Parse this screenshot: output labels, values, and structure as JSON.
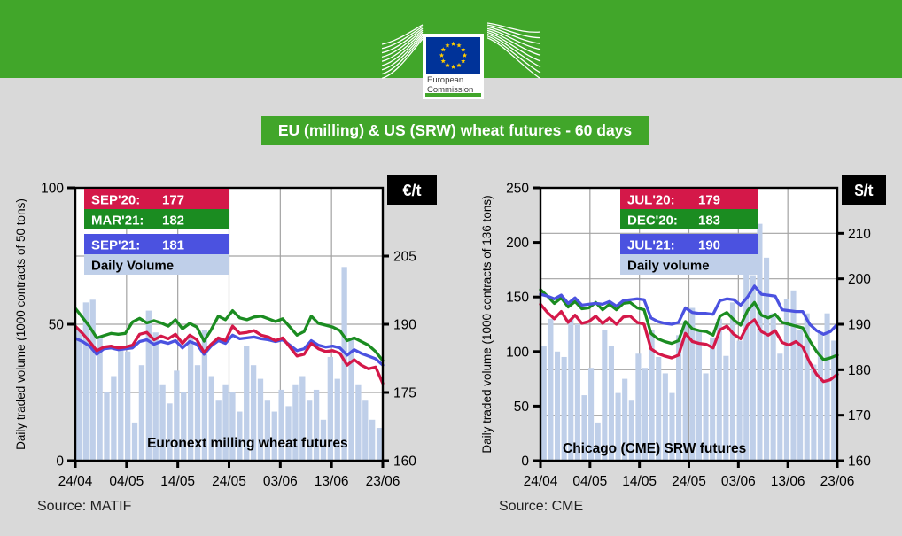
{
  "title": "EU (milling) & US (SRW) wheat futures - 60 days",
  "header": {
    "logo": {
      "line1": "European",
      "line2": "Commission"
    }
  },
  "colors": {
    "band_green": "#41a62a",
    "page_bg": "#d9d9d9",
    "grid": "#a3a3a3",
    "red": "#d41849",
    "green": "#1b8c21",
    "blue": "#4b52e0",
    "volume": "#bfcfe9",
    "unit_box_bg": "#000000",
    "unit_box_fg": "#ffffff"
  },
  "chart_data": [
    {
      "type": "line+bar",
      "title": "Euronext milling wheat futures",
      "source": "Source: MATIF",
      "x_tick_labels": [
        "24/04",
        "04/05",
        "14/05",
        "24/05",
        "03/06",
        "13/06",
        "23/06"
      ],
      "y_left": {
        "label": "Daily traded volume (1000 contracts of 50 tons)",
        "min": 0,
        "max": 100,
        "ticks": [
          0,
          50,
          100
        ]
      },
      "y_right": {
        "unit": "€/t",
        "min": 160,
        "max": 220,
        "ticks": [
          160,
          175,
          190,
          205
        ]
      },
      "legend": [
        {
          "text": "SEP'20:",
          "value": "177",
          "bg": "#d41849",
          "fg": "#ffffff"
        },
        {
          "text": "MAR'21:",
          "value": "182",
          "bg": "#1b8c21",
          "fg": "#ffffff"
        },
        {
          "text": "SEP'21:",
          "value": "181",
          "bg": "#4b52e0",
          "fg": "#ffffff"
        },
        {
          "text": "Daily Volume",
          "value": "",
          "bg": "#bfcfe9",
          "fg": "#000000"
        }
      ],
      "series": [
        {
          "name": "MAR'21",
          "last": 182,
          "color": "#1b8c21",
          "values": [
            193.5,
            191.5,
            189.5,
            187.0,
            187.5,
            188.0,
            187.8,
            188.0,
            190.5,
            191.3,
            190.3,
            190.8,
            190.3,
            189.6,
            191.0,
            189.0,
            190.2,
            189.4,
            186.3,
            188.8,
            191.8,
            191.0,
            193.0,
            191.4,
            191.0,
            191.6,
            191.8,
            191.2,
            190.6,
            191.2,
            189.4,
            187.6,
            188.4,
            191.8,
            190.2,
            189.8,
            189.4,
            188.6,
            186.4,
            187.0,
            186.2,
            185.4,
            184.0,
            182.0
          ]
        },
        {
          "name": "SEP'21",
          "last": 181,
          "color": "#4b52e0",
          "values": [
            186.9,
            186.2,
            185.2,
            183.4,
            184.6,
            184.8,
            184.4,
            184.6,
            184.8,
            186.2,
            186.6,
            185.6,
            186.2,
            185.8,
            186.4,
            184.8,
            186.2,
            185.6,
            183.4,
            185.2,
            186.4,
            185.8,
            187.6,
            186.8,
            187.0,
            187.2,
            186.8,
            186.6,
            186.2,
            186.6,
            185.4,
            184.2,
            184.6,
            186.4,
            185.4,
            185.0,
            185.2,
            184.8,
            183.2,
            184.4,
            183.6,
            183.0,
            182.4,
            181.0
          ]
        },
        {
          "name": "SEP'20",
          "last": 177,
          "color": "#d41849",
          "values": [
            189.6,
            188.0,
            186.2,
            184.2,
            185.0,
            185.2,
            184.8,
            185.0,
            185.4,
            187.8,
            188.2,
            186.6,
            187.4,
            186.8,
            187.8,
            185.8,
            187.6,
            186.6,
            183.8,
            185.6,
            187.0,
            186.4,
            189.6,
            188.0,
            188.2,
            188.6,
            187.6,
            187.2,
            186.4,
            187.0,
            185.0,
            183.0,
            183.4,
            185.8,
            184.6,
            184.0,
            184.2,
            183.6,
            181.0,
            182.2,
            181.0,
            180.2,
            180.6,
            177.0
          ]
        }
      ],
      "volume": {
        "name": "Daily Volume",
        "color": "#bfcfe9",
        "values": [
          48,
          58,
          59,
          45,
          25,
          31,
          42,
          40,
          14,
          35,
          55,
          47,
          28,
          21,
          33,
          25,
          45,
          35,
          48,
          31,
          22,
          28,
          25,
          18,
          42,
          35,
          30,
          22,
          18,
          26,
          20,
          28,
          31,
          22,
          26,
          15,
          38,
          30,
          71,
          45,
          28,
          22,
          15,
          12
        ]
      }
    },
    {
      "type": "line+bar",
      "title": "Chicago (CME) SRW futures",
      "source": "Source: CME",
      "x_tick_labels": [
        "24/04",
        "04/05",
        "14/05",
        "24/05",
        "03/06",
        "13/06",
        "23/06"
      ],
      "y_left": {
        "label": "Daily traded volume (1000 contracts of 136 tons)",
        "min": 0,
        "max": 250,
        "ticks": [
          0,
          50,
          100,
          150,
          200,
          250
        ]
      },
      "y_right": {
        "unit": "$/t",
        "min": 160,
        "max": 220,
        "ticks": [
          160,
          170,
          180,
          190,
          200,
          210
        ]
      },
      "legend": [
        {
          "text": "JUL'20:",
          "value": "179",
          "bg": "#d41849",
          "fg": "#ffffff"
        },
        {
          "text": "DEC'20:",
          "value": "183",
          "bg": "#1b8c21",
          "fg": "#ffffff"
        },
        {
          "text": "JUL'21:",
          "value": "190",
          "bg": "#4b52e0",
          "fg": "#ffffff"
        },
        {
          "text": "Daily volume",
          "value": "",
          "bg": "#bfcfe9",
          "fg": "#000000"
        }
      ],
      "series": [
        {
          "name": "JUL'20",
          "last": 179,
          "color": "#d41849",
          "values": [
            194.4,
            192.6,
            191.2,
            192.8,
            190.4,
            192.0,
            190.2,
            190.6,
            191.8,
            190.2,
            191.4,
            190.0,
            191.6,
            191.8,
            190.4,
            190.0,
            184.6,
            183.6,
            183.0,
            182.6,
            183.2,
            188.0,
            186.2,
            185.8,
            185.6,
            184.8,
            188.8,
            189.6,
            187.8,
            186.8,
            189.8,
            191.0,
            188.4,
            187.6,
            188.6,
            186.0,
            185.4,
            186.2,
            185.0,
            181.6,
            179.0,
            177.4,
            177.8,
            179.0
          ]
        },
        {
          "name": "DEC'20",
          "last": 183,
          "color": "#1b8c21",
          "values": [
            197.6,
            196.2,
            194.6,
            195.8,
            193.8,
            195.0,
            193.4,
            193.6,
            194.8,
            193.2,
            194.4,
            193.2,
            194.6,
            194.8,
            193.6,
            193.2,
            188.0,
            186.8,
            186.2,
            185.8,
            186.4,
            190.6,
            189.0,
            188.6,
            188.4,
            187.6,
            191.8,
            192.6,
            191.0,
            189.8,
            193.0,
            194.8,
            192.0,
            191.4,
            192.2,
            190.4,
            190.0,
            189.6,
            189.2,
            186.4,
            184.0,
            182.2,
            182.6,
            183.2
          ]
        },
        {
          "name": "JUL'21",
          "last": 190,
          "color": "#4b52e0",
          "values": [
            196.6,
            196.2,
            195.6,
            196.4,
            194.6,
            195.8,
            194.2,
            194.4,
            194.6,
            194.4,
            195.0,
            194.0,
            195.2,
            195.4,
            195.6,
            195.4,
            191.4,
            190.6,
            190.2,
            190.0,
            190.4,
            193.6,
            192.6,
            192.4,
            192.4,
            192.2,
            195.2,
            195.6,
            195.4,
            194.2,
            196.0,
            198.4,
            196.6,
            196.4,
            196.2,
            193.2,
            193.0,
            192.8,
            192.8,
            190.0,
            188.6,
            187.8,
            188.4,
            190.0
          ]
        }
      ],
      "volume": {
        "name": "Daily volume",
        "color": "#bfcfe9",
        "values": [
          105,
          130,
          100,
          95,
          130,
          125,
          60,
          85,
          35,
          120,
          105,
          62,
          75,
          55,
          98,
          85,
          120,
          95,
          80,
          62,
          115,
          128,
          140,
          120,
          80,
          113,
          130,
          96,
          145,
          110,
          190,
          170,
          217,
          186,
          135,
          98,
          148,
          156,
          120,
          135,
          88,
          118,
          135,
          110
        ]
      }
    }
  ]
}
